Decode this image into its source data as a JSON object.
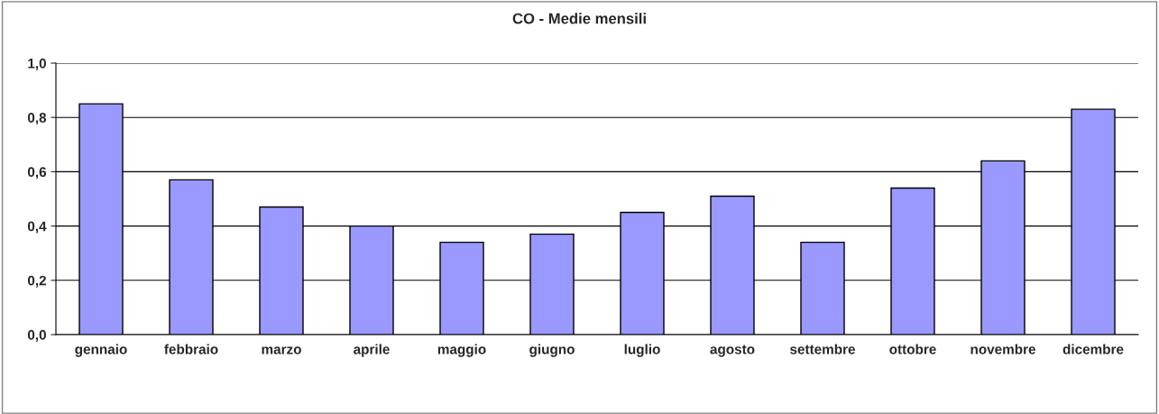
{
  "chart_data": {
    "type": "bar",
    "title": "CO - Medie mensili",
    "categories": [
      "gennaio",
      "febbraio",
      "marzo",
      "aprile",
      "maggio",
      "giugno",
      "luglio",
      "agosto",
      "settembre",
      "ottobre",
      "novembre",
      "dicembre"
    ],
    "series": [
      {
        "color": "#9999ff",
        "values": [
          0.85,
          0.57,
          0.47,
          0.4,
          0.34,
          0.37,
          0.45,
          0.51,
          0.34,
          0.54,
          0.64,
          0.83
        ]
      }
    ],
    "ylim": [
      0,
      1.0
    ],
    "yticks": [
      {
        "value": 0,
        "label": "0,0"
      },
      {
        "value": 0.2,
        "label": "0,2"
      },
      {
        "value": 0.4,
        "label": "0,4"
      },
      {
        "value": 0.6,
        "label": "0,6"
      },
      {
        "value": 0.8,
        "label": "0,8"
      },
      {
        "value": 1.0,
        "label": "1,0"
      }
    ],
    "grid": "y"
  }
}
